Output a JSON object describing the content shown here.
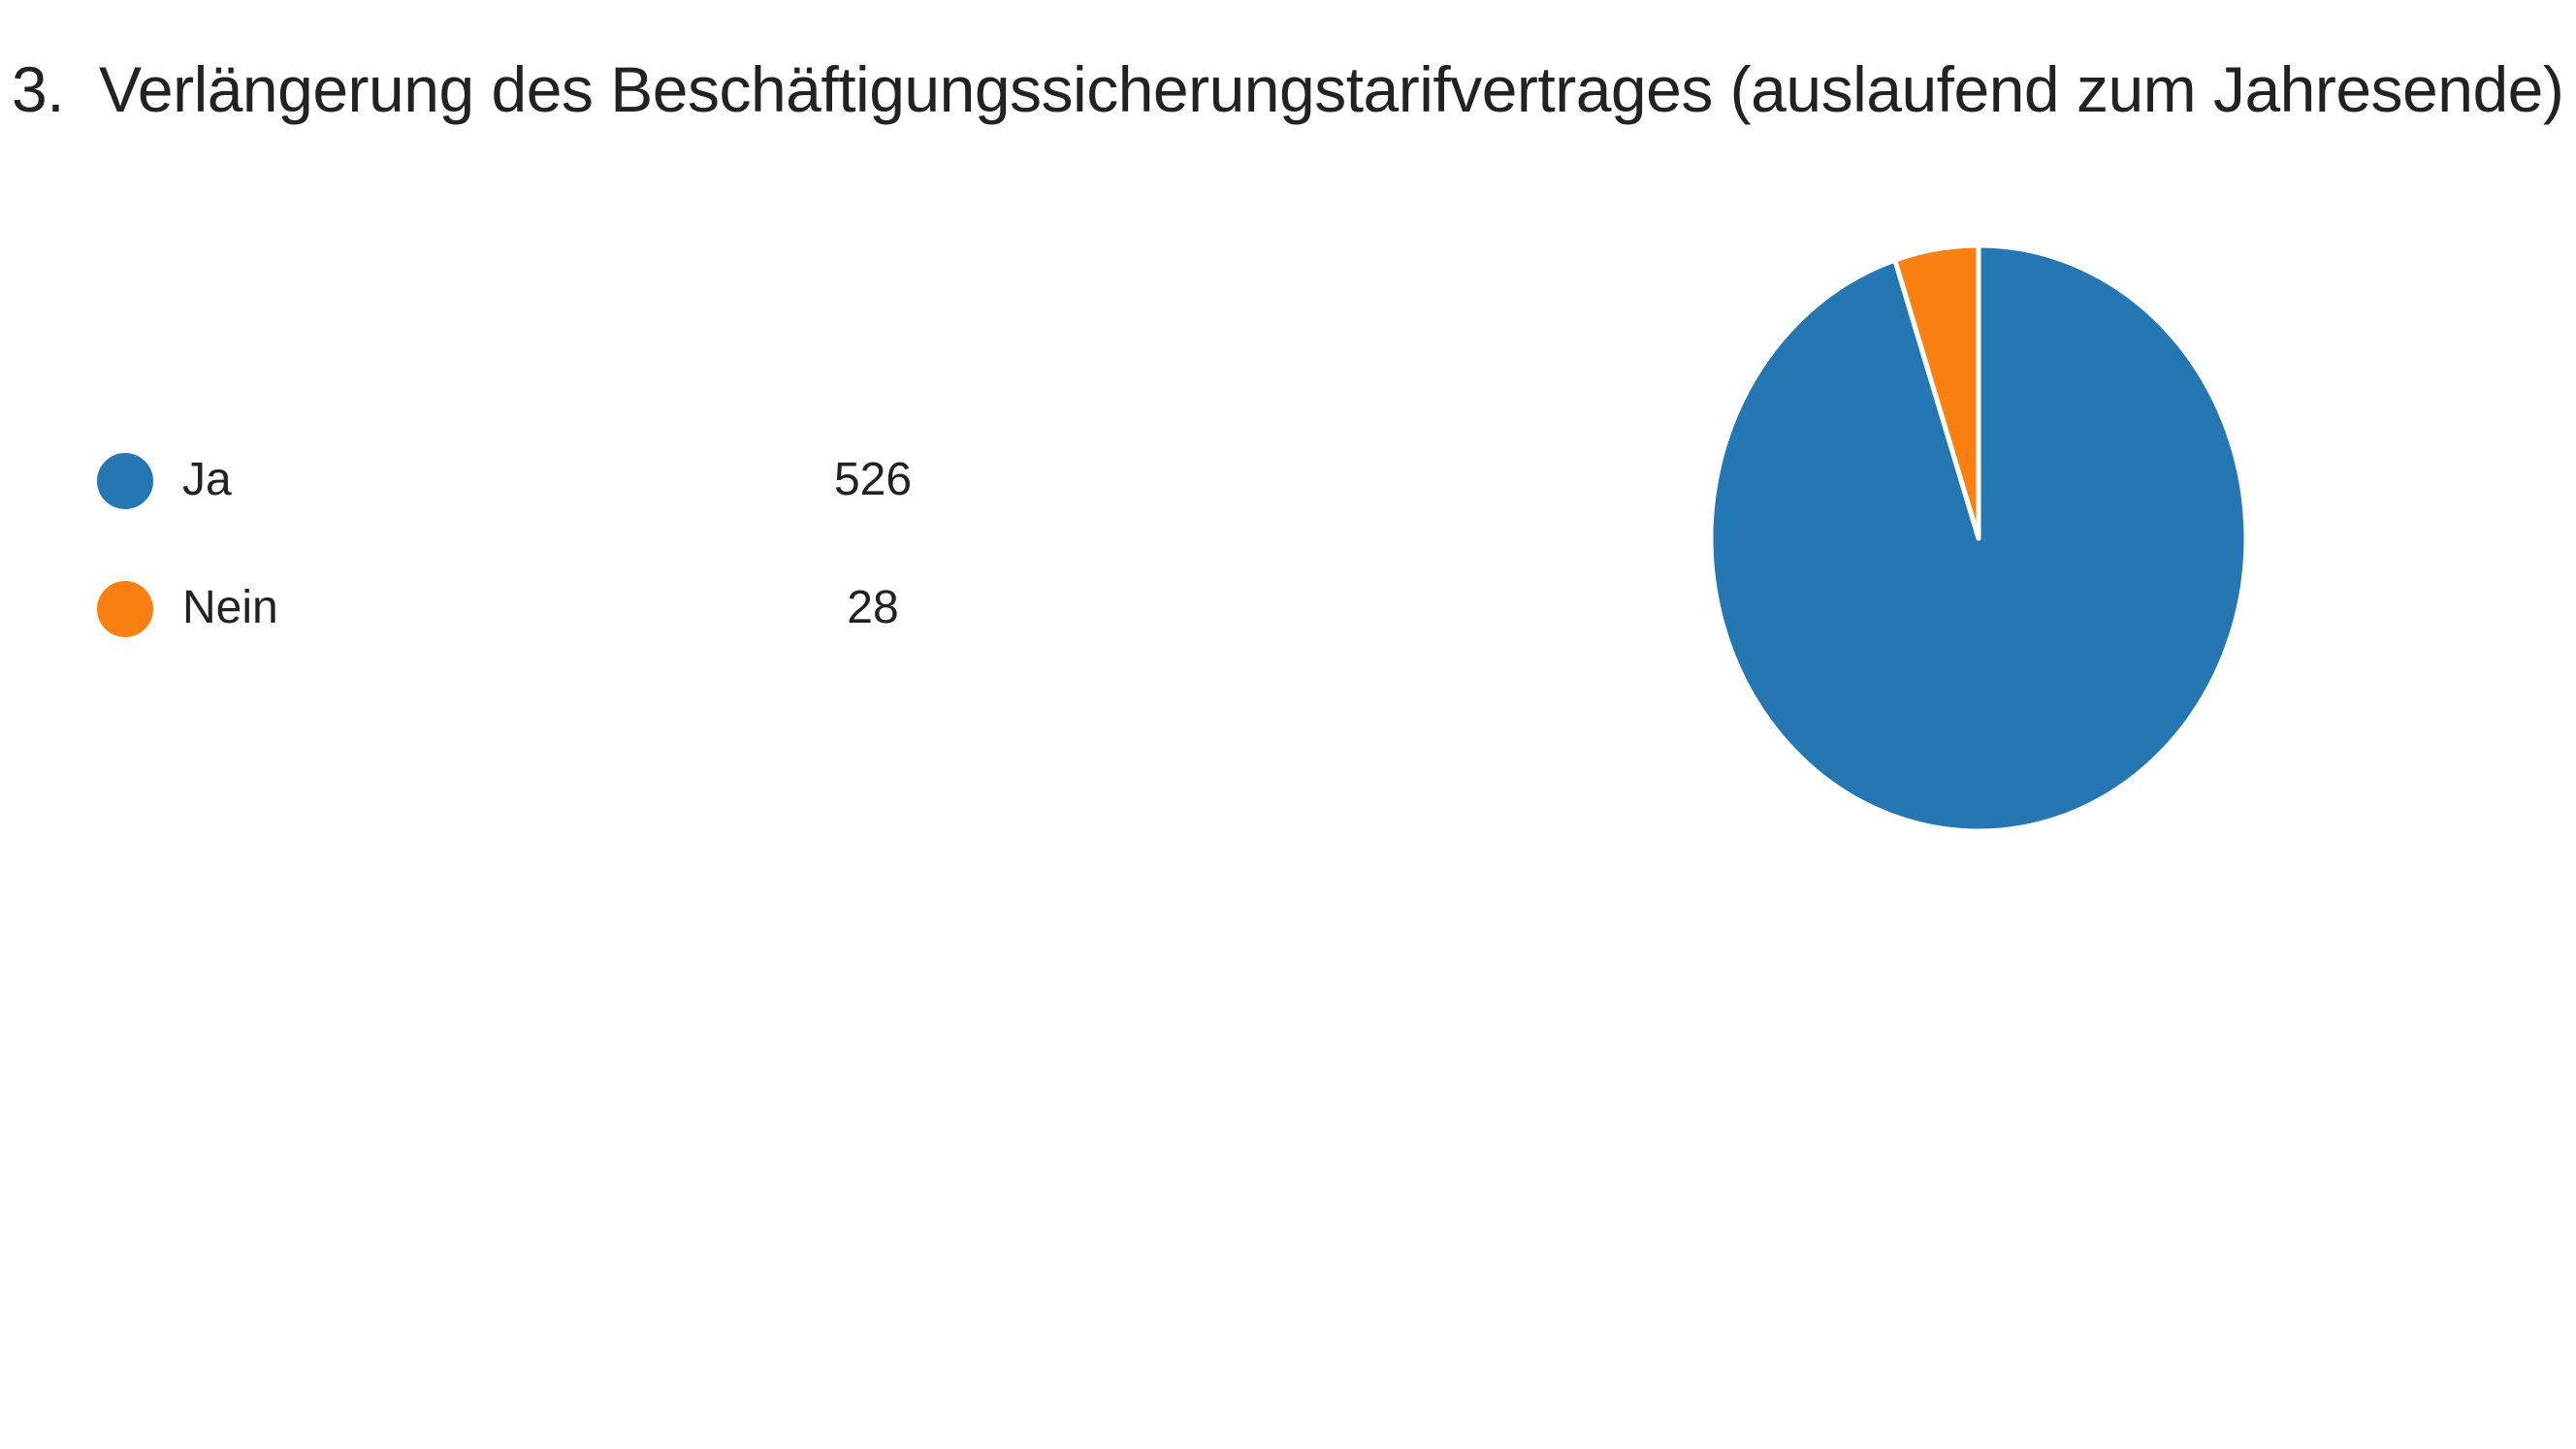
{
  "question": {
    "number": "3.",
    "title": "Verlängerung des Beschäftigungssicherungstarifvertrages (auslaufend zum Jahresende)"
  },
  "chart_data": {
    "type": "pie",
    "title": "Verlängerung des Beschäftigungssicherungstarifvertrages (auslaufend zum Jahresende)",
    "categories": [
      "Ja",
      "Nein"
    ],
    "values": [
      526,
      28
    ],
    "colors": [
      "#2577b4",
      "#fb8012"
    ],
    "legend": "left"
  }
}
